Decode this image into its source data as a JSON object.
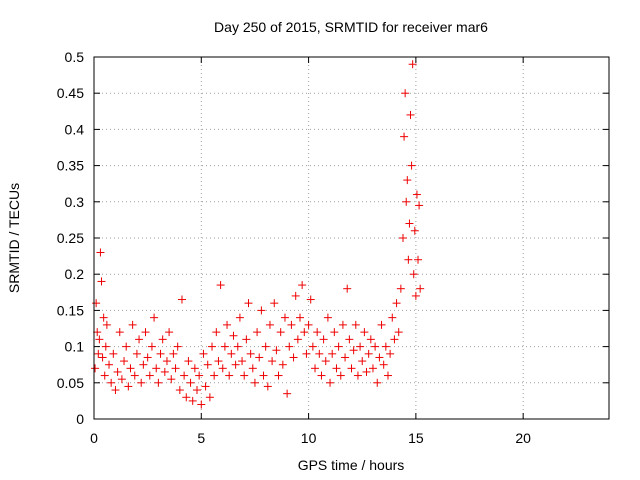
{
  "chart_data": {
    "type": "scatter",
    "title": "Day 250 of 2015, SRMTID for receiver mar6",
    "xlabel": "GPS time / hours",
    "ylabel": "SRMTID / TECUs",
    "xlim": [
      0,
      24
    ],
    "ylim": [
      0,
      0.5
    ],
    "xticks": [
      0,
      5,
      10,
      15,
      20
    ],
    "xtick_labels": [
      "0",
      "5",
      "10",
      "15",
      "20"
    ],
    "yticks": [
      0,
      0.05,
      0.1,
      0.15,
      0.2,
      0.25,
      0.3,
      0.35,
      0.4,
      0.45,
      0.5
    ],
    "ytick_labels": [
      "0",
      "0.05",
      "0.1",
      "0.15",
      "0.2",
      "0.25",
      "0.3",
      "0.35",
      "0.4",
      "0.45",
      "0.5"
    ],
    "grid": true,
    "marker": "plus",
    "color": "#ee0000",
    "series": [
      {
        "name": "SRMTID",
        "points": [
          [
            0.05,
            0.07
          ],
          [
            0.1,
            0.16
          ],
          [
            0.15,
            0.12
          ],
          [
            0.2,
            0.09
          ],
          [
            0.25,
            0.11
          ],
          [
            0.3,
            0.23
          ],
          [
            0.35,
            0.19
          ],
          [
            0.4,
            0.085
          ],
          [
            0.45,
            0.14
          ],
          [
            0.5,
            0.06
          ],
          [
            0.55,
            0.1
          ],
          [
            0.6,
            0.13
          ],
          [
            0.7,
            0.075
          ],
          [
            0.8,
            0.05
          ],
          [
            0.9,
            0.09
          ],
          [
            1.0,
            0.04
          ],
          [
            1.1,
            0.065
          ],
          [
            1.2,
            0.12
          ],
          [
            1.3,
            0.055
          ],
          [
            1.4,
            0.08
          ],
          [
            1.5,
            0.1
          ],
          [
            1.6,
            0.045
          ],
          [
            1.7,
            0.07
          ],
          [
            1.8,
            0.13
          ],
          [
            1.9,
            0.06
          ],
          [
            2.0,
            0.09
          ],
          [
            2.1,
            0.11
          ],
          [
            2.2,
            0.05
          ],
          [
            2.3,
            0.075
          ],
          [
            2.4,
            0.12
          ],
          [
            2.5,
            0.085
          ],
          [
            2.6,
            0.06
          ],
          [
            2.7,
            0.1
          ],
          [
            2.8,
            0.14
          ],
          [
            2.9,
            0.07
          ],
          [
            3.0,
            0.05
          ],
          [
            3.1,
            0.09
          ],
          [
            3.2,
            0.11
          ],
          [
            3.3,
            0.065
          ],
          [
            3.4,
            0.08
          ],
          [
            3.5,
            0.12
          ],
          [
            3.6,
            0.055
          ],
          [
            3.7,
            0.09
          ],
          [
            3.8,
            0.07
          ],
          [
            3.9,
            0.1
          ],
          [
            4.0,
            0.04
          ],
          [
            4.1,
            0.165
          ],
          [
            4.2,
            0.06
          ],
          [
            4.3,
            0.03
          ],
          [
            4.4,
            0.08
          ],
          [
            4.5,
            0.05
          ],
          [
            4.6,
            0.025
          ],
          [
            4.7,
            0.07
          ],
          [
            4.8,
            0.04
          ],
          [
            4.9,
            0.06
          ],
          [
            5.0,
            0.02
          ],
          [
            5.1,
            0.09
          ],
          [
            5.2,
            0.045
          ],
          [
            5.3,
            0.075
          ],
          [
            5.4,
            0.03
          ],
          [
            5.5,
            0.1
          ],
          [
            5.6,
            0.06
          ],
          [
            5.7,
            0.12
          ],
          [
            5.8,
            0.08
          ],
          [
            5.9,
            0.185
          ],
          [
            6.0,
            0.07
          ],
          [
            6.1,
            0.1
          ],
          [
            6.2,
            0.13
          ],
          [
            6.3,
            0.06
          ],
          [
            6.4,
            0.09
          ],
          [
            6.5,
            0.115
          ],
          [
            6.6,
            0.075
          ],
          [
            6.7,
            0.1
          ],
          [
            6.8,
            0.14
          ],
          [
            6.9,
            0.08
          ],
          [
            7.0,
            0.06
          ],
          [
            7.1,
            0.11
          ],
          [
            7.2,
            0.16
          ],
          [
            7.3,
            0.09
          ],
          [
            7.4,
            0.07
          ],
          [
            7.5,
            0.05
          ],
          [
            7.6,
            0.12
          ],
          [
            7.7,
            0.085
          ],
          [
            7.8,
            0.15
          ],
          [
            7.9,
            0.06
          ],
          [
            8.0,
            0.1
          ],
          [
            8.1,
            0.045
          ],
          [
            8.2,
            0.13
          ],
          [
            8.3,
            0.08
          ],
          [
            8.4,
            0.16
          ],
          [
            8.5,
            0.095
          ],
          [
            8.6,
            0.06
          ],
          [
            8.7,
            0.12
          ],
          [
            8.8,
            0.075
          ],
          [
            8.9,
            0.14
          ],
          [
            9.0,
            0.035
          ],
          [
            9.1,
            0.1
          ],
          [
            9.2,
            0.13
          ],
          [
            9.3,
            0.085
          ],
          [
            9.4,
            0.17
          ],
          [
            9.5,
            0.11
          ],
          [
            9.6,
            0.14
          ],
          [
            9.7,
            0.185
          ],
          [
            9.8,
            0.12
          ],
          [
            9.9,
            0.09
          ],
          [
            10.0,
            0.13
          ],
          [
            10.1,
            0.165
          ],
          [
            10.2,
            0.1
          ],
          [
            10.3,
            0.07
          ],
          [
            10.4,
            0.12
          ],
          [
            10.5,
            0.09
          ],
          [
            10.6,
            0.06
          ],
          [
            10.7,
            0.11
          ],
          [
            10.8,
            0.08
          ],
          [
            10.9,
            0.14
          ],
          [
            11.0,
            0.05
          ],
          [
            11.1,
            0.09
          ],
          [
            11.2,
            0.12
          ],
          [
            11.3,
            0.07
          ],
          [
            11.4,
            0.1
          ],
          [
            11.5,
            0.06
          ],
          [
            11.6,
            0.13
          ],
          [
            11.7,
            0.085
          ],
          [
            11.8,
            0.18
          ],
          [
            11.9,
            0.11
          ],
          [
            12.0,
            0.07
          ],
          [
            12.1,
            0.095
          ],
          [
            12.2,
            0.13
          ],
          [
            12.3,
            0.06
          ],
          [
            12.4,
            0.1
          ],
          [
            12.5,
            0.08
          ],
          [
            12.6,
            0.12
          ],
          [
            12.7,
            0.065
          ],
          [
            12.8,
            0.09
          ],
          [
            12.9,
            0.11
          ],
          [
            13.0,
            0.07
          ],
          [
            13.1,
            0.1
          ],
          [
            13.2,
            0.05
          ],
          [
            13.3,
            0.085
          ],
          [
            13.4,
            0.13
          ],
          [
            13.5,
            0.075
          ],
          [
            13.6,
            0.1
          ],
          [
            13.7,
            0.06
          ],
          [
            13.8,
            0.09
          ],
          [
            13.9,
            0.14
          ],
          [
            14.0,
            0.11
          ],
          [
            14.1,
            0.16
          ],
          [
            14.2,
            0.12
          ],
          [
            14.3,
            0.18
          ],
          [
            14.4,
            0.25
          ],
          [
            14.45,
            0.39
          ],
          [
            14.5,
            0.45
          ],
          [
            14.55,
            0.3
          ],
          [
            14.6,
            0.33
          ],
          [
            14.65,
            0.22
          ],
          [
            14.7,
            0.27
          ],
          [
            14.75,
            0.42
          ],
          [
            14.8,
            0.35
          ],
          [
            14.85,
            0.49
          ],
          [
            14.9,
            0.2
          ],
          [
            14.95,
            0.26
          ],
          [
            15.0,
            0.17
          ],
          [
            15.05,
            0.31
          ],
          [
            15.1,
            0.22
          ],
          [
            15.15,
            0.295
          ],
          [
            15.2,
            0.18
          ]
        ]
      }
    ]
  }
}
